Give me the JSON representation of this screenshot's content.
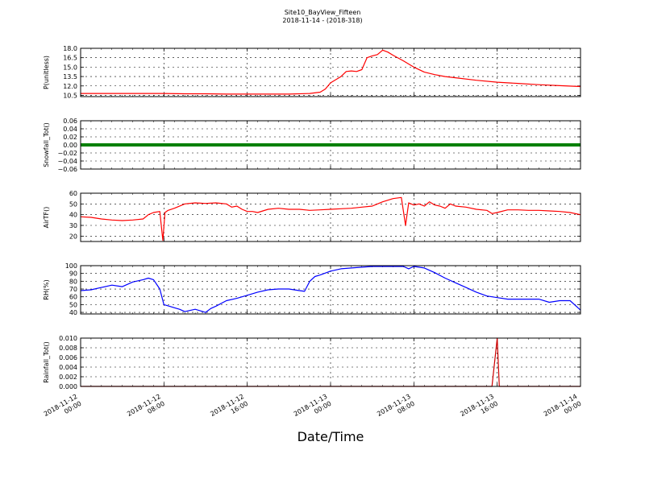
{
  "title": "Site10_BayView_Fifteen",
  "subtitle": "2018-11-14 - (2018-318)",
  "xlabel": "Date/Time",
  "x_ticks": [
    "2018-11-12 00:00",
    "2018-11-12 08:00",
    "2018-11-12 16:00",
    "2018-11-13 00:00",
    "2018-11-13 08:00",
    "2018-11-13 16:00",
    "2018-11-14 00:00"
  ],
  "x_tick_lines": [
    [
      "2018-11-12",
      "00:00"
    ],
    [
      "2018-11-12",
      "08:00"
    ],
    [
      "2018-11-12",
      "16:00"
    ],
    [
      "2018-11-13",
      "00:00"
    ],
    [
      "2018-11-13",
      "08:00"
    ],
    [
      "2018-11-13",
      "16:00"
    ],
    [
      "2018-11-14",
      "00:00"
    ]
  ],
  "chart_data": [
    {
      "type": "line",
      "ylabel": "P(unitless)",
      "ylim": [
        10.3,
        18.0
      ],
      "y_ticks": [
        "10.5",
        "12.0",
        "13.5",
        "15.0",
        "16.5",
        "18.0"
      ],
      "color": "#ff0000",
      "grid": true,
      "series": [
        {
          "x_hours": [
            0,
            2,
            4,
            6,
            8,
            10,
            12,
            14,
            16,
            18,
            20,
            22,
            23,
            23.5,
            24,
            25,
            25.5,
            26,
            26.5,
            27,
            27.5,
            28,
            28.5,
            29,
            29.5,
            30,
            31,
            32,
            33,
            34,
            35,
            36,
            38,
            40,
            42,
            44,
            46,
            48
          ],
          "values": [
            10.8,
            10.8,
            10.8,
            10.8,
            10.8,
            10.75,
            10.75,
            10.7,
            10.7,
            10.7,
            10.7,
            10.8,
            11.0,
            11.5,
            12.5,
            13.5,
            14.3,
            14.4,
            14.3,
            14.6,
            16.5,
            16.8,
            17.0,
            17.7,
            17.4,
            16.9,
            16.0,
            15.0,
            14.2,
            13.8,
            13.5,
            13.3,
            12.9,
            12.6,
            12.4,
            12.2,
            12.05,
            11.9
          ]
        }
      ]
    },
    {
      "type": "line",
      "ylabel": "Snowfall_Tot()",
      "ylim": [
        -0.06,
        0.06
      ],
      "y_ticks": [
        "−0.06",
        "−0.04",
        "−0.02",
        "0.00",
        "0.02",
        "0.04",
        "0.06"
      ],
      "color": "#008000",
      "grid": true,
      "series": [
        {
          "x_hours": [
            0,
            48
          ],
          "values": [
            0.0,
            0.0
          ]
        }
      ]
    },
    {
      "type": "line",
      "ylabel": "AirTF()",
      "ylim": [
        15,
        60
      ],
      "y_ticks": [
        "20",
        "30",
        "40",
        "50",
        "60"
      ],
      "color": "#ff0000",
      "grid": true,
      "series": [
        {
          "x_hours": [
            0,
            1,
            2,
            3,
            4,
            5,
            6,
            6.5,
            7,
            7.6,
            7.9,
            8.1,
            8.4,
            9,
            10,
            11,
            12,
            13,
            14,
            14.5,
            15,
            15.5,
            16,
            16.5,
            17,
            18,
            19,
            20,
            21,
            22,
            23,
            24,
            25,
            26,
            27,
            28,
            29,
            30,
            30.8,
            31.2,
            31.5,
            32,
            32.5,
            33,
            33.5,
            34,
            34.5,
            35,
            35.5,
            36,
            37,
            38,
            39,
            39.5,
            40,
            41,
            42,
            43,
            44,
            45,
            46,
            47,
            48
          ],
          "values": [
            38,
            37.5,
            36,
            35,
            34.5,
            35,
            36,
            40,
            42,
            43,
            16,
            42,
            44,
            46,
            50,
            51,
            50.5,
            51,
            50,
            47,
            48,
            45,
            43,
            43,
            42,
            45,
            46,
            45,
            45,
            44,
            44.5,
            45,
            45.5,
            46,
            47,
            48,
            52,
            55,
            56,
            30,
            51,
            49,
            50,
            48,
            52,
            49,
            48,
            46,
            50,
            48,
            47,
            45,
            44,
            41,
            42,
            44.5,
            44.5,
            44,
            44,
            43.5,
            43,
            42,
            40
          ]
        }
      ]
    },
    {
      "type": "line",
      "ylabel": "RH(%)",
      "ylim": [
        38,
        100
      ],
      "y_ticks": [
        "40",
        "50",
        "60",
        "70",
        "80",
        "90",
        "100"
      ],
      "color": "#0000ff",
      "grid": true,
      "series": [
        {
          "x_hours": [
            0,
            1,
            2,
            3,
            4,
            5,
            6,
            6.5,
            7,
            7.6,
            8,
            8.5,
            9,
            9.5,
            10,
            11,
            12,
            12.5,
            13,
            14,
            15,
            16,
            17,
            18,
            19,
            20,
            21,
            21.5,
            22,
            22.5,
            23,
            24,
            25,
            26,
            27,
            28,
            29,
            30,
            31,
            31.5,
            32,
            32.5,
            33,
            34,
            35,
            36,
            37,
            38,
            39,
            40,
            41,
            42,
            43,
            44,
            45,
            46,
            47,
            48
          ],
          "values": [
            68,
            69,
            72,
            75,
            73,
            79,
            82,
            84,
            82,
            70,
            50,
            48,
            46,
            44,
            41,
            44,
            40,
            45,
            48,
            55,
            58,
            62,
            66,
            69,
            70,
            70,
            68,
            67,
            80,
            86,
            88,
            93,
            96,
            97,
            98,
            99,
            99,
            99,
            99,
            96,
            99,
            98,
            97,
            91,
            84,
            78,
            72,
            66,
            61,
            59,
            57,
            57,
            57,
            57,
            53,
            55,
            55,
            43
          ]
        }
      ]
    },
    {
      "type": "line",
      "ylabel": "Rainfall_Tot()",
      "ylim": [
        0.0,
        0.01
      ],
      "y_ticks": [
        "0.000",
        "0.002",
        "0.004",
        "0.006",
        "0.008",
        "0.010"
      ],
      "color": "#cc0000",
      "grid": true,
      "series": [
        {
          "x_hours": [
            0,
            39.5,
            40,
            40.2,
            48
          ],
          "values": [
            0.0,
            0.0,
            0.01,
            0.0,
            0.0
          ]
        }
      ]
    }
  ]
}
